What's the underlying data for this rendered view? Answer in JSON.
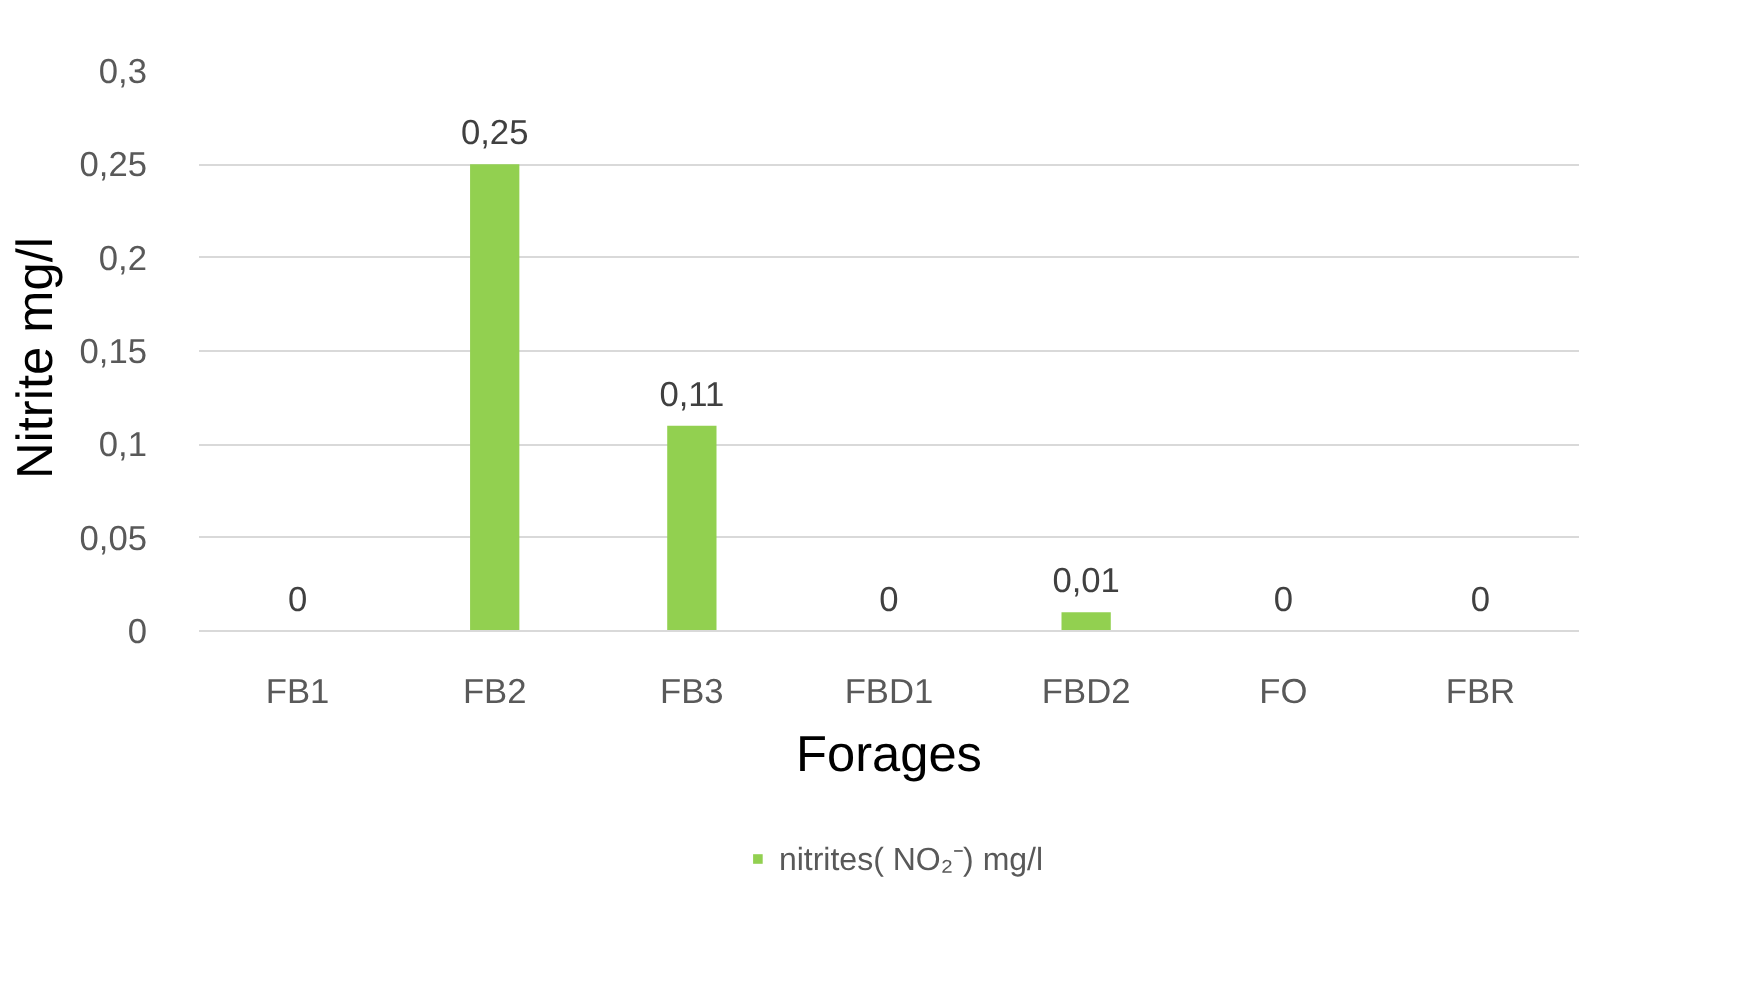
{
  "chart_data": {
    "type": "bar",
    "xlabel": "Forages",
    "ylabel": "Nitrite  mg/l",
    "categories": [
      "FB1",
      "FB2",
      "FB3",
      "FBD1",
      "FBD2",
      "FO",
      "FBR"
    ],
    "series": [
      {
        "name": "nitrites( NO₂⁻) mg/l",
        "color": "#92d050",
        "values": [
          0,
          0.25,
          0.11,
          0,
          0.01,
          0,
          0
        ],
        "value_labels": [
          "0",
          "0,25",
          "0,11",
          "0",
          "0,01",
          "0",
          "0"
        ]
      }
    ],
    "ylim": [
      0,
      0.3
    ],
    "yticks": [
      {
        "value": 0,
        "label": "0"
      },
      {
        "value": 0.05,
        "label": "0,05"
      },
      {
        "value": 0.1,
        "label": "0,1"
      },
      {
        "value": 0.15,
        "label": "0,15"
      },
      {
        "value": 0.2,
        "label": "0,2"
      },
      {
        "value": 0.25,
        "label": "0,25"
      },
      {
        "value": 0.3,
        "label": "0,3"
      }
    ],
    "grid": "y",
    "legend": "bottom"
  }
}
